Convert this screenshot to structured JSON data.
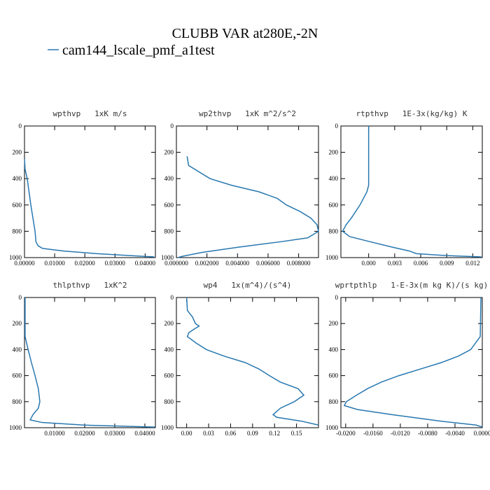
{
  "title": "CLUBB VAR at280E,-2N",
  "legend": {
    "name": "cam144_lscale_pmf_a1test",
    "color": "#2878b0"
  },
  "chart_data": [
    {
      "type": "line",
      "title": "wpthvp   1xK m/s",
      "y": [
        250,
        330,
        400,
        500,
        600,
        700,
        800,
        880,
        910,
        930,
        950,
        970,
        985,
        995
      ],
      "series": [
        {
          "color": "#2878b0",
          "values": [
            0.0,
            0.0002,
            0.0009,
            0.0015,
            0.0021,
            0.0028,
            0.0035,
            0.0038,
            0.0045,
            0.006,
            0.013,
            0.024,
            0.035,
            0.043
          ]
        }
      ],
      "xlim": [
        0,
        0.0434
      ],
      "xticks": [
        {
          "value": 0,
          "label": "0.00000"
        },
        {
          "value": 0.01,
          "label": "0.01000"
        },
        {
          "value": 0.02,
          "label": "0.02000"
        },
        {
          "value": 0.03,
          "label": "0.03000"
        },
        {
          "value": 0.04,
          "label": "0.04000"
        }
      ],
      "ylim": [
        0,
        1000
      ],
      "yticks": [
        0,
        200,
        400,
        600,
        800,
        1000
      ],
      "y_inverted": true
    },
    {
      "type": "line",
      "title": "wp2thvp   1xK m^2/s^2",
      "y": [
        230,
        300,
        400,
        450,
        500,
        550,
        600,
        650,
        700,
        750,
        800,
        850,
        880,
        920,
        960,
        990,
        1000
      ],
      "series": [
        {
          "color": "#2878b0",
          "values": [
            0.0007,
            0.0008,
            0.0022,
            0.0036,
            0.0054,
            0.0066,
            0.0072,
            0.0081,
            0.0088,
            0.0092,
            0.0093,
            0.0086,
            0.0068,
            0.0041,
            0.0017,
            0.0004,
            0.0001
          ]
        }
      ],
      "xlim": [
        0,
        0.0093
      ],
      "xticks": [
        {
          "value": 0,
          "label": "0.000000"
        },
        {
          "value": 0.002,
          "label": "0.002000"
        },
        {
          "value": 0.004,
          "label": "0.004000"
        },
        {
          "value": 0.006,
          "label": "0.006000"
        },
        {
          "value": 0.008,
          "label": "0.008000"
        }
      ],
      "ylim": [
        0,
        1000
      ],
      "yticks": [
        0,
        200,
        400,
        600,
        800,
        1000
      ],
      "y_inverted": true
    },
    {
      "type": "line",
      "title": "rtpthvp   1E-3x(kg/kg) K",
      "y": [
        0,
        450,
        500,
        600,
        700,
        750,
        800,
        840,
        880,
        920,
        950,
        970,
        985,
        995
      ],
      "series": [
        {
          "color": "#2878b0",
          "values": [
            0.0,
            0.0,
            -0.0002,
            -0.001,
            -0.002,
            -0.0026,
            -0.003,
            -0.0022,
            0.0002,
            0.0027,
            0.0047,
            0.0055,
            0.009,
            0.013
          ]
        }
      ],
      "xlim": [
        -0.0032,
        0.0131
      ],
      "xticks": [
        {
          "value": 0,
          "label": "0.000"
        },
        {
          "value": 0.003,
          "label": "0.003"
        },
        {
          "value": 0.006,
          "label": "0.006"
        },
        {
          "value": 0.009,
          "label": "0.009"
        },
        {
          "value": 0.012,
          "label": "0.012"
        }
      ],
      "ylim": [
        0,
        1000
      ],
      "yticks": [
        0,
        200,
        400,
        600,
        800,
        1000
      ],
      "y_inverted": true
    },
    {
      "type": "line",
      "title": "thlpthvp   1xK^2",
      "y": [
        0,
        300,
        400,
        500,
        600,
        700,
        800,
        850,
        900,
        940,
        960,
        980,
        995
      ],
      "series": [
        {
          "color": "#2878b0",
          "values": [
            0.0002,
            0.0002,
            0.0012,
            0.0023,
            0.0035,
            0.0046,
            0.0051,
            0.0046,
            0.0028,
            0.0019,
            0.0058,
            0.0197,
            0.0434
          ]
        }
      ],
      "xlim": [
        0,
        0.0435
      ],
      "xticks": [
        {
          "value": 0.01,
          "label": "0.01000"
        },
        {
          "value": 0.02,
          "label": "0.02000"
        },
        {
          "value": 0.03,
          "label": "0.03000"
        },
        {
          "value": 0.04,
          "label": "0.04000"
        }
      ],
      "ylim": [
        0,
        1000
      ],
      "yticks": [
        0,
        200,
        400,
        600,
        800,
        1000
      ],
      "y_inverted": true
    },
    {
      "type": "line",
      "title": "wp4   1x(m^4)/(s^4)",
      "y": [
        0,
        100,
        150,
        200,
        220,
        240,
        270,
        300,
        350,
        400,
        450,
        500,
        550,
        600,
        650,
        700,
        750,
        800,
        850,
        900,
        920,
        950,
        980
      ],
      "series": [
        {
          "color": "#2878b0",
          "values": [
            0.0,
            0.001,
            0.008,
            0.012,
            0.017,
            0.011,
            0.003,
            0.001,
            0.013,
            0.027,
            0.051,
            0.08,
            0.099,
            0.113,
            0.128,
            0.152,
            0.16,
            0.147,
            0.128,
            0.118,
            0.123,
            0.157,
            0.18
          ]
        }
      ],
      "xlim": [
        -0.014,
        0.18
      ],
      "xticks": [
        {
          "value": 0,
          "label": "0.00"
        },
        {
          "value": 0.03,
          "label": "0.03"
        },
        {
          "value": 0.06,
          "label": "0.06"
        },
        {
          "value": 0.09,
          "label": "0.09"
        },
        {
          "value": 0.12,
          "label": "0.12"
        },
        {
          "value": 0.15,
          "label": "0.15"
        }
      ],
      "ylim": [
        0,
        1000
      ],
      "yticks": [
        0,
        200,
        400,
        600,
        800,
        1000
      ],
      "y_inverted": true
    },
    {
      "type": "line",
      "title": "wprtpthlp   1-E-3x(m kg K)/(s kg)",
      "y": [
        0,
        300,
        400,
        450,
        500,
        550,
        600,
        650,
        700,
        750,
        800,
        830,
        860,
        900,
        950,
        980,
        995
      ],
      "series": [
        {
          "color": "#2878b0",
          "values": [
            -0.0002,
            -0.0003,
            -0.0017,
            -0.0035,
            -0.006,
            -0.0091,
            -0.0122,
            -0.0148,
            -0.0168,
            -0.0184,
            -0.0199,
            -0.0202,
            -0.0183,
            -0.0132,
            -0.006,
            -0.0009,
            0.0
          ]
        }
      ],
      "xlim": [
        -0.0207,
        0
      ],
      "xticks": [
        {
          "value": -0.02,
          "label": "-0.0200"
        },
        {
          "value": -0.016,
          "label": "-0.0160"
        },
        {
          "value": -0.012,
          "label": "-0.0120"
        },
        {
          "value": -0.008,
          "label": "-0.0080"
        },
        {
          "value": -0.004,
          "label": "-0.0040"
        },
        {
          "value": 0,
          "label": "0.0000"
        }
      ],
      "ylim": [
        0,
        1000
      ],
      "yticks": [
        0,
        200,
        400,
        600,
        800,
        1000
      ],
      "y_inverted": true
    }
  ]
}
